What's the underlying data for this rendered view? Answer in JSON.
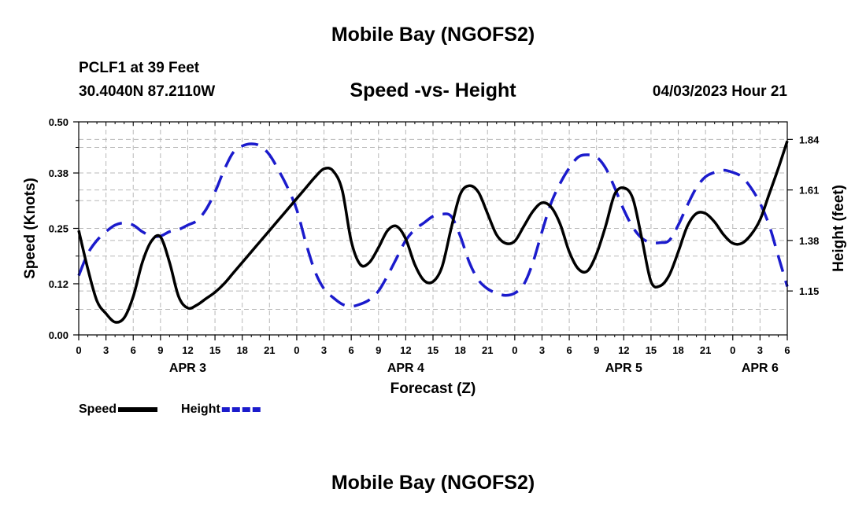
{
  "page": {
    "title": "Mobile Bay (NGOFS2)",
    "station": "PCLF1 at 39 Feet",
    "coords": "30.4040N  87.2110W",
    "subtitle": "Speed -vs- Height",
    "datetime": "04/03/2023 Hour 21",
    "footer_title": "Mobile Bay (NGOFS2)"
  },
  "chart_data": {
    "type": "line",
    "title": "Speed -vs- Height",
    "xlabel": "Forecast (Z)",
    "ylabel": "Speed (Knots)",
    "y2label": "Height (feet)",
    "xlim": [
      0,
      78
    ],
    "ylim": [
      0,
      0.5
    ],
    "y2lim": [
      0.95,
      1.92
    ],
    "x_ticks": [
      0,
      3,
      6,
      9,
      12,
      15,
      18,
      21,
      24,
      27,
      30,
      33,
      36,
      39,
      42,
      45,
      48,
      51,
      54,
      57,
      60,
      63,
      66,
      69,
      72,
      75,
      78
    ],
    "x_tick_labels": [
      "0",
      "3",
      "6",
      "9",
      "12",
      "15",
      "18",
      "21",
      "0",
      "3",
      "6",
      "9",
      "12",
      "15",
      "18",
      "21",
      "0",
      "3",
      "6",
      "9",
      "12",
      "15",
      "18",
      "21",
      "0",
      "3",
      "6"
    ],
    "day_labels": [
      {
        "label": "APR 3",
        "x": 12
      },
      {
        "label": "APR 4",
        "x": 36
      },
      {
        "label": "APR 5",
        "x": 60
      },
      {
        "label": "APR 6",
        "x": 75
      }
    ],
    "y_ticks": [
      0.0,
      0.12,
      0.25,
      0.38,
      0.5
    ],
    "y_tick_labels": [
      "0.00",
      "0.12",
      "0.25",
      "0.38",
      "0.50"
    ],
    "y2_ticks": [
      1.15,
      1.38,
      1.61,
      1.84
    ],
    "y2_tick_labels": [
      "1.15",
      "1.38",
      "1.61",
      "1.84"
    ],
    "grid": true,
    "legend": "bottom-left",
    "series": [
      {
        "name": "Speed",
        "axis": "left",
        "color": "#000000",
        "dash": "solid",
        "x": [
          0,
          1,
          2,
          3,
          4,
          5,
          6,
          7,
          8,
          9,
          10,
          11,
          12,
          13,
          14,
          15,
          16,
          17,
          18,
          19,
          20,
          21,
          22,
          23,
          24,
          25,
          26,
          27,
          28,
          29,
          30,
          31,
          32,
          33,
          34,
          35,
          36,
          37,
          38,
          39,
          40,
          41,
          42,
          43,
          44,
          45,
          46,
          47,
          48,
          49,
          50,
          51,
          52,
          53,
          54,
          55,
          56,
          57,
          58,
          59,
          60,
          61,
          62,
          63,
          64,
          65,
          66,
          67,
          68,
          69,
          70,
          71,
          72,
          73,
          74,
          75,
          76,
          77,
          78
        ],
        "values": [
          0.245,
          0.155,
          0.08,
          0.05,
          0.03,
          0.04,
          0.09,
          0.17,
          0.22,
          0.23,
          0.17,
          0.09,
          0.063,
          0.07,
          0.085,
          0.1,
          0.12,
          0.145,
          0.17,
          0.195,
          0.22,
          0.245,
          0.27,
          0.295,
          0.32,
          0.345,
          0.37,
          0.39,
          0.385,
          0.34,
          0.22,
          0.165,
          0.17,
          0.205,
          0.245,
          0.255,
          0.225,
          0.165,
          0.128,
          0.125,
          0.16,
          0.25,
          0.33,
          0.35,
          0.335,
          0.285,
          0.235,
          0.215,
          0.22,
          0.255,
          0.29,
          0.31,
          0.3,
          0.26,
          0.195,
          0.155,
          0.15,
          0.19,
          0.255,
          0.33,
          0.345,
          0.32,
          0.225,
          0.125,
          0.115,
          0.14,
          0.195,
          0.255,
          0.285,
          0.285,
          0.265,
          0.235,
          0.215,
          0.215,
          0.235,
          0.27,
          0.33,
          0.39,
          0.455
        ]
      },
      {
        "name": "Height",
        "axis": "right",
        "color": "#1b1bcc",
        "dash": "dashed",
        "x": [
          0,
          1,
          2,
          3,
          4,
          5,
          6,
          7,
          8,
          9,
          10,
          11,
          12,
          13,
          14,
          15,
          16,
          17,
          18,
          19,
          20,
          21,
          22,
          23,
          24,
          25,
          26,
          27,
          28,
          29,
          30,
          31,
          32,
          33,
          34,
          35,
          36,
          37,
          38,
          39,
          40,
          41,
          42,
          43,
          44,
          45,
          46,
          47,
          48,
          49,
          50,
          51,
          52,
          53,
          54,
          55,
          56,
          57,
          58,
          59,
          60,
          61,
          62,
          63,
          64,
          65,
          66,
          67,
          68,
          69,
          70,
          71,
          72,
          73,
          74,
          75,
          76,
          77,
          78
        ],
        "values": [
          1.22,
          1.32,
          1.38,
          1.42,
          1.45,
          1.46,
          1.45,
          1.42,
          1.4,
          1.4,
          1.42,
          1.43,
          1.45,
          1.47,
          1.52,
          1.6,
          1.7,
          1.78,
          1.81,
          1.82,
          1.81,
          1.77,
          1.7,
          1.62,
          1.52,
          1.37,
          1.24,
          1.16,
          1.12,
          1.09,
          1.08,
          1.09,
          1.11,
          1.15,
          1.22,
          1.3,
          1.38,
          1.43,
          1.46,
          1.49,
          1.5,
          1.49,
          1.4,
          1.28,
          1.2,
          1.16,
          1.14,
          1.13,
          1.14,
          1.18,
          1.28,
          1.42,
          1.55,
          1.64,
          1.71,
          1.76,
          1.77,
          1.76,
          1.71,
          1.62,
          1.52,
          1.44,
          1.39,
          1.37,
          1.37,
          1.38,
          1.45,
          1.54,
          1.62,
          1.67,
          1.69,
          1.7,
          1.69,
          1.67,
          1.62,
          1.55,
          1.45,
          1.31,
          1.17
        ]
      }
    ]
  }
}
